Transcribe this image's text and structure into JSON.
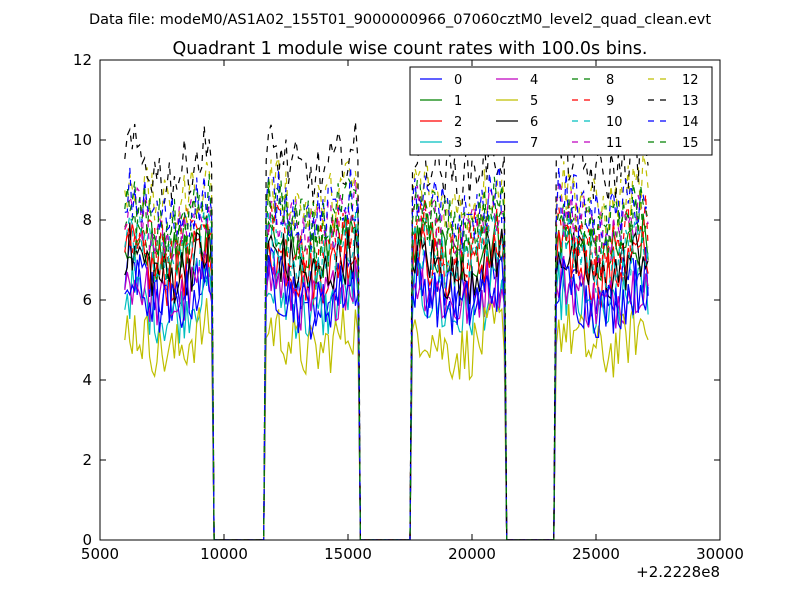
{
  "chart_data": {
    "type": "line",
    "suptitle": "Data file: modeM0/AS1A02_155T01_9000000966_07060cztM0_level2_quad_clean.evt",
    "title": "Quadrant 1 module wise count rates with 100.0s bins.",
    "xlabel": "",
    "ylabel": "",
    "x_offset_label": "+2.2228e8",
    "xlim": [
      5000,
      30000
    ],
    "ylim": [
      0,
      12
    ],
    "xticks": [
      5000,
      10000,
      15000,
      20000,
      25000,
      30000
    ],
    "yticks": [
      0,
      2,
      4,
      6,
      8,
      10,
      12
    ],
    "grid": false,
    "legend_position": "top-right",
    "bin_size_s": 100,
    "segments": [
      [
        6000,
        9500
      ],
      [
        11700,
        15400
      ],
      [
        17600,
        21300
      ],
      [
        23400,
        27100
      ]
    ],
    "gap_value": 0,
    "series": [
      {
        "name": "0",
        "color": "#0000ff",
        "dash": "solid",
        "mean": 6.4
      },
      {
        "name": "1",
        "color": "#008000",
        "dash": "solid",
        "mean": 7.3
      },
      {
        "name": "2",
        "color": "#ff0000",
        "dash": "solid",
        "mean": 6.9
      },
      {
        "name": "3",
        "color": "#00bfbf",
        "dash": "solid",
        "mean": 5.9
      },
      {
        "name": "4",
        "color": "#bf00bf",
        "dash": "solid",
        "mean": 6.2
      },
      {
        "name": "5",
        "color": "#bfbf00",
        "dash": "solid",
        "mean": 5.0
      },
      {
        "name": "6",
        "color": "#000000",
        "dash": "solid",
        "mean": 6.9
      },
      {
        "name": "7",
        "color": "#0000ff",
        "dash": "solid",
        "mean": 6.1
      },
      {
        "name": "8",
        "color": "#008000",
        "dash": "dashed",
        "mean": 7.8
      },
      {
        "name": "9",
        "color": "#ff0000",
        "dash": "dashed",
        "mean": 7.6
      },
      {
        "name": "10",
        "color": "#00bfbf",
        "dash": "dashed",
        "mean": 7.2
      },
      {
        "name": "11",
        "color": "#bf00bf",
        "dash": "dashed",
        "mean": 8.0
      },
      {
        "name": "12",
        "color": "#bfbf00",
        "dash": "dashed",
        "mean": 8.6
      },
      {
        "name": "13",
        "color": "#000000",
        "dash": "dashed",
        "mean": 9.4
      },
      {
        "name": "14",
        "color": "#0000ff",
        "dash": "dashed",
        "mean": 8.3
      },
      {
        "name": "15",
        "color": "#008000",
        "dash": "dashed",
        "mean": 8.1
      }
    ]
  }
}
